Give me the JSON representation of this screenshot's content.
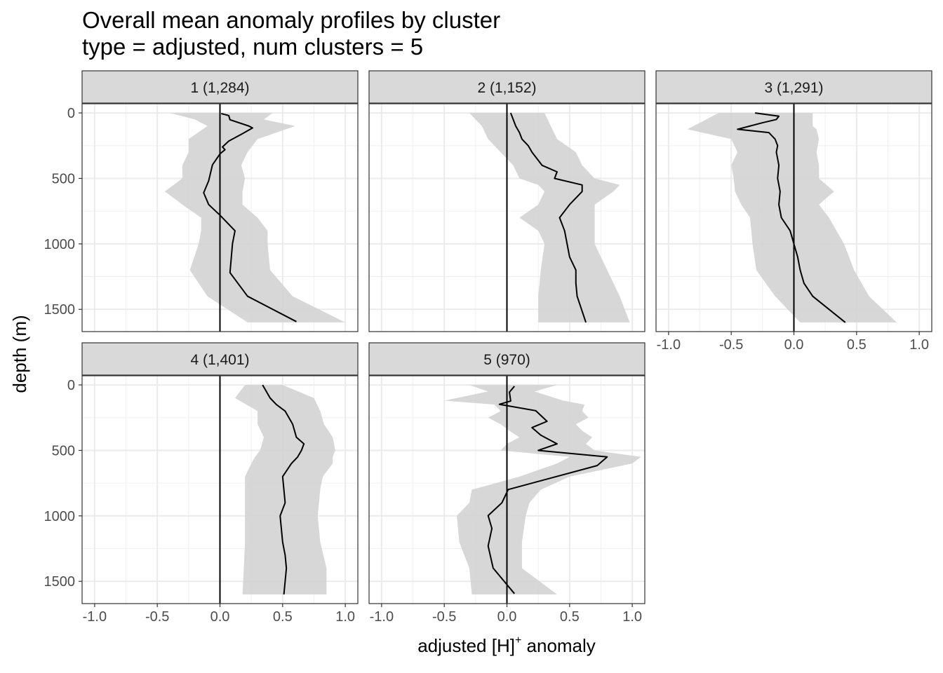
{
  "chart_data": {
    "type": "line",
    "title": "Overall mean anomaly profiles by cluster",
    "subtitle": "type = adjusted, num clusters = 5",
    "xlabel": "adjusted [H]",
    "xlabel_sup": "+",
    "xlabel_suffix": " anomaly",
    "ylabel": "depth (m)",
    "xlim": [
      -1.1,
      1.1
    ],
    "ylim": [
      1670,
      -70
    ],
    "x_ticks": [
      "-1.0",
      "-0.5",
      "0.0",
      "0.5",
      "1.0"
    ],
    "x_tick_values": [
      -1,
      -0.5,
      0,
      0.5,
      1
    ],
    "y_ticks": [
      "0",
      "500",
      "1000",
      "1500"
    ],
    "y_tick_values": [
      0,
      500,
      1000,
      1500
    ],
    "grid": true,
    "band_color": "#d3d3d3",
    "line_color": "#000000",
    "panels": [
      {
        "label": "1 (1,284)",
        "mean": {
          "depth": [
            5,
            20,
            52,
            100,
            115,
            158,
            215,
            260,
            281,
            313,
            397,
            518,
            610,
            700,
            781,
            900,
            998,
            1220,
            1400,
            1594
          ],
          "value": [
            0.01,
            0.07,
            0.08,
            0.23,
            0.26,
            0.18,
            0.07,
            0.02,
            0.04,
            0,
            -0.06,
            -0.09,
            -0.13,
            -0.09,
            0,
            0.12,
            0.1,
            0.08,
            0.22,
            0.61
          ]
        },
        "band": {
          "depth": [
            0,
            50,
            100,
            200,
            300,
            400,
            500,
            600,
            700,
            800,
            900,
            1000,
            1200,
            1400,
            1600
          ],
          "lo": [
            -0.4,
            -0.2,
            -0.1,
            -0.25,
            -0.25,
            -0.3,
            -0.3,
            -0.44,
            -0.3,
            -0.15,
            -0.15,
            -0.17,
            -0.24,
            -0.1,
            0.22
          ],
          "hi": [
            0.42,
            0.35,
            0.6,
            0.3,
            0.22,
            0.17,
            0.2,
            0.18,
            0.18,
            0.3,
            0.38,
            0.38,
            0.4,
            0.58,
            1.0
          ]
        }
      },
      {
        "label": "2 (1,152)",
        "mean": {
          "depth": [
            0,
            50,
            100,
            150,
            200,
            250,
            300,
            400,
            450,
            500,
            550,
            600,
            700,
            800,
            900,
            1000,
            1100,
            1200,
            1300,
            1400,
            1600
          ],
          "value": [
            0.03,
            0.05,
            0.07,
            0.1,
            0.12,
            0.17,
            0.2,
            0.28,
            0.4,
            0.38,
            0.6,
            0.6,
            0.5,
            0.42,
            0.46,
            0.48,
            0.5,
            0.55,
            0.55,
            0.56,
            0.63
          ]
        },
        "band": {
          "depth": [
            0,
            100,
            200,
            300,
            400,
            500,
            550,
            600,
            700,
            800,
            900,
            1000,
            1200,
            1400,
            1600
          ],
          "lo": [
            -0.3,
            -0.2,
            -0.15,
            -0.05,
            0.05,
            0.1,
            0.25,
            0.3,
            0.25,
            0.1,
            0.25,
            0.3,
            0.27,
            0.25,
            0.25
          ],
          "hi": [
            0.3,
            0.35,
            0.4,
            0.55,
            0.6,
            0.7,
            0.9,
            0.85,
            0.7,
            0.7,
            0.7,
            0.7,
            0.8,
            0.9,
            0.98
          ]
        }
      },
      {
        "label": "3 (1,291)",
        "mean": {
          "depth": [
            0,
            25,
            50,
            75,
            100,
            125,
            150,
            200,
            250,
            300,
            400,
            500,
            600,
            700,
            800,
            900,
            1000,
            1100,
            1200,
            1300,
            1400,
            1600
          ],
          "value": [
            -0.31,
            -0.12,
            -0.14,
            -0.25,
            -0.35,
            -0.45,
            -0.2,
            -0.15,
            -0.13,
            -0.14,
            -0.12,
            -0.13,
            -0.11,
            -0.12,
            -0.1,
            -0.03,
            0,
            0.03,
            0.05,
            0.08,
            0.15,
            0.41
          ]
        },
        "band": {
          "depth": [
            0,
            100,
            125,
            200,
            300,
            400,
            500,
            600,
            700,
            800,
            1000,
            1200,
            1400,
            1600
          ],
          "lo": [
            -0.6,
            -0.8,
            -0.85,
            -0.5,
            -0.45,
            -0.5,
            -0.48,
            -0.47,
            -0.42,
            -0.35,
            -0.33,
            -0.3,
            -0.15,
            0.05
          ],
          "hi": [
            0.15,
            0.15,
            0.18,
            0.2,
            0.18,
            0.2,
            0.2,
            0.32,
            0.2,
            0.28,
            0.4,
            0.48,
            0.6,
            0.82
          ]
        }
      },
      {
        "label": "4 (1,401)",
        "mean": {
          "depth": [
            0,
            50,
            100,
            150,
            200,
            300,
            400,
            450,
            500,
            550,
            600,
            700,
            800,
            900,
            1000,
            1100,
            1200,
            1300,
            1400,
            1600
          ],
          "value": [
            0.34,
            0.37,
            0.4,
            0.45,
            0.52,
            0.58,
            0.61,
            0.67,
            0.65,
            0.62,
            0.57,
            0.5,
            0.51,
            0.52,
            0.48,
            0.49,
            0.5,
            0.52,
            0.53,
            0.51
          ]
        },
        "band": {
          "depth": [
            0,
            100,
            200,
            300,
            400,
            500,
            550,
            600,
            700,
            800,
            1000,
            1200,
            1400,
            1600
          ],
          "lo": [
            0.2,
            0.12,
            0.3,
            0.3,
            0.35,
            0.32,
            0.28,
            0.25,
            0.2,
            0.2,
            0.2,
            0.2,
            0.19,
            0.18
          ],
          "hi": [
            0.5,
            0.75,
            0.8,
            0.83,
            0.9,
            0.92,
            0.9,
            0.9,
            0.82,
            0.8,
            0.78,
            0.8,
            0.85,
            0.85
          ]
        }
      },
      {
        "label": "5 (970)",
        "mean": {
          "depth": [
            10,
            55,
            123,
            148,
            197,
            242,
            278,
            326,
            384,
            450,
            500,
            550,
            616,
            799,
            900,
            998,
            1096,
            1230,
            1399,
            1594
          ],
          "value": [
            0.06,
            0.02,
            0.03,
            -0.06,
            0.23,
            0.28,
            0.32,
            0.2,
            0.27,
            0.4,
            0.25,
            0.8,
            0.72,
            0.01,
            -0.04,
            -0.15,
            -0.12,
            -0.15,
            -0.11,
            0.06
          ]
        },
        "band": {
          "depth": [
            0,
            50,
            120,
            150,
            200,
            250,
            300,
            350,
            400,
            450,
            500,
            550,
            600,
            700,
            800,
            900,
            1000,
            1200,
            1400,
            1600
          ],
          "lo": [
            -0.3,
            -0.15,
            -0.5,
            -0.1,
            -0.05,
            -0.15,
            -0.05,
            0.02,
            0.1,
            0,
            -0.05,
            0.5,
            0.4,
            0.1,
            -0.28,
            -0.3,
            -0.4,
            -0.38,
            -0.3,
            -0.28
          ],
          "hi": [
            0.4,
            0.22,
            0.45,
            0.62,
            0.6,
            0.65,
            0.55,
            0.6,
            0.68,
            0.63,
            0.7,
            1.07,
            1.0,
            0.5,
            0.27,
            0.18,
            0.15,
            0.12,
            0.12,
            0.4
          ]
        }
      }
    ]
  }
}
